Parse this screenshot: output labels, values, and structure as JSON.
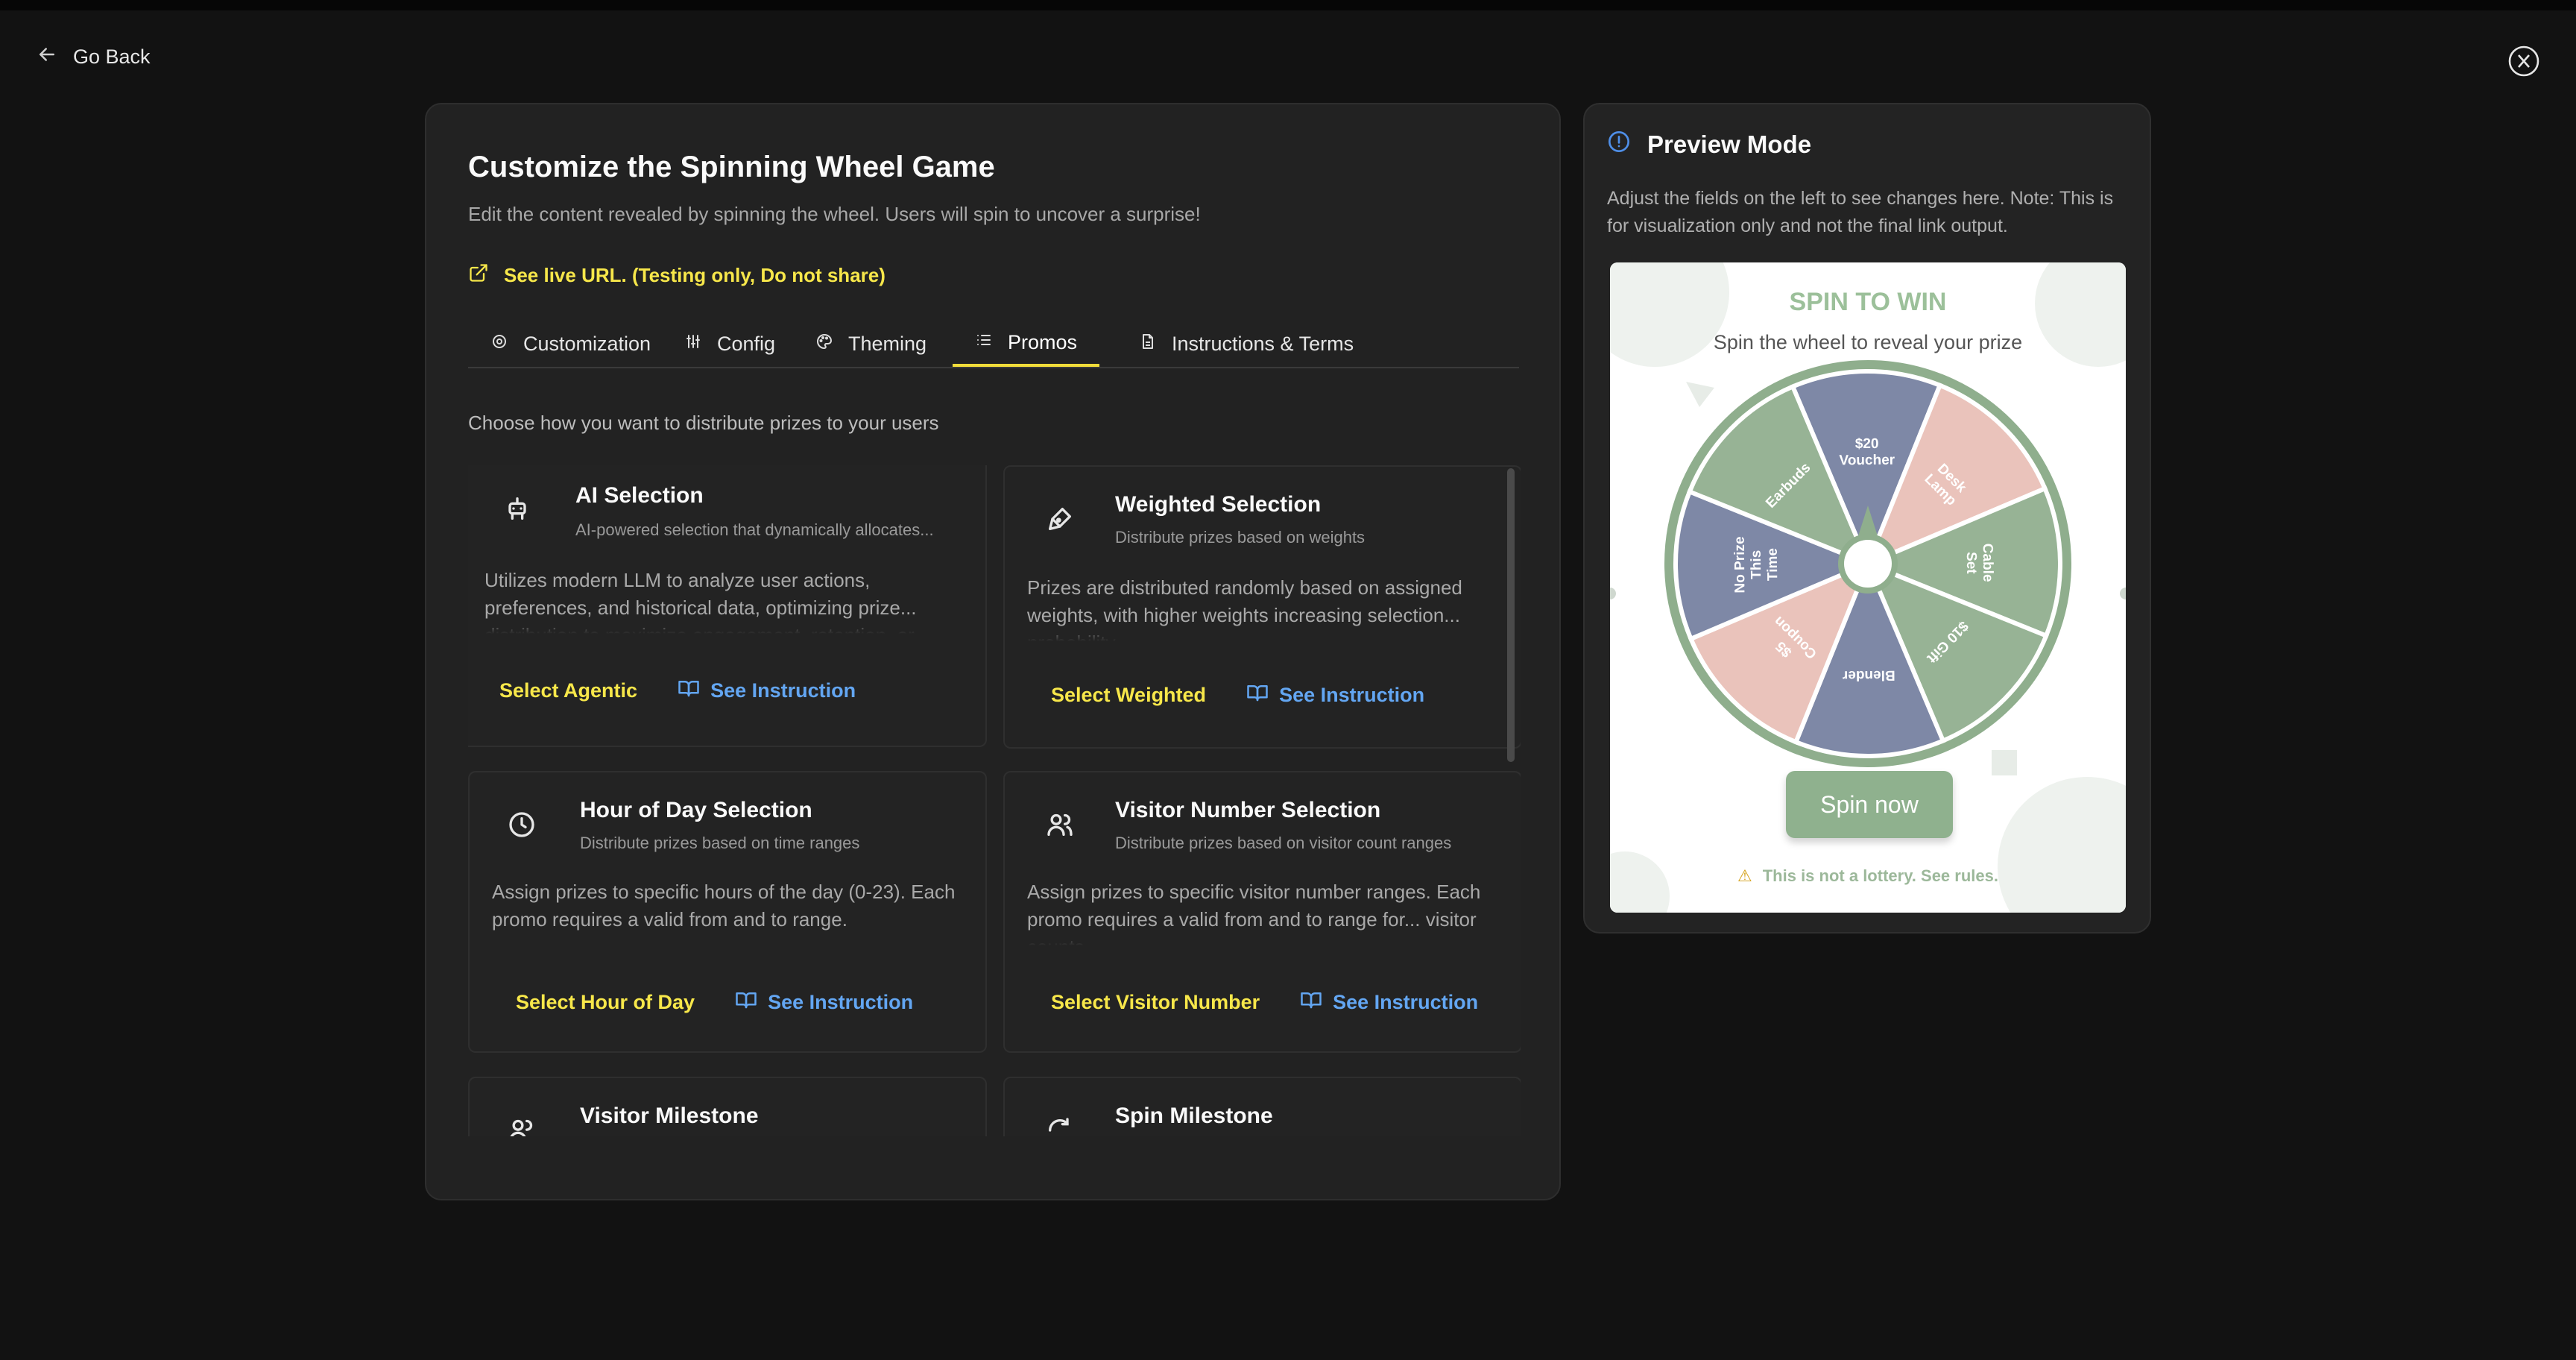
{
  "header": {
    "go_back_label": "Go Back"
  },
  "main": {
    "title": "Customize the Spinning Wheel Game",
    "subtitle": "Edit the content revealed by spinning the wheel. Users will spin to uncover a surprise!",
    "live_url_label": "See live URL. (Testing only, Do not share)",
    "tabs": [
      {
        "label": "Customization",
        "icon": "target-icon"
      },
      {
        "label": "Config",
        "icon": "sliders-icon"
      },
      {
        "label": "Theming",
        "icon": "palette-icon"
      },
      {
        "label": "Promos",
        "icon": "list-icon",
        "active": true
      },
      {
        "label": "Instructions & Terms",
        "icon": "document-icon"
      }
    ],
    "choose_text": "Choose how you want to distribute prizes to your users",
    "promo_cards": [
      {
        "icon": "robot-icon",
        "title": "AI Selection",
        "subtitle": "AI-powered selection that dynamically allocates...",
        "description": "Utilizes modern LLM to analyze user actions, preferences, and historical data, optimizing prize... distribution to maximize engagement, retention, or",
        "select_label": "Select Agentic",
        "instruction_label": "See Instruction"
      },
      {
        "icon": "scale-icon",
        "title": "Weighted Selection",
        "subtitle": "Distribute prizes based on weights",
        "description": "Prizes are distributed randomly based on assigned weights, with higher weights increasing selection... probability",
        "select_label": "Select Weighted",
        "instruction_label": "See Instruction"
      },
      {
        "icon": "clock-icon",
        "title": "Hour of Day Selection",
        "subtitle": "Distribute prizes based on time ranges",
        "description": "Assign prizes to specific hours of the day (0-23). Each promo requires a valid from and to range.",
        "select_label": "Select Hour of Day",
        "instruction_label": "See Instruction"
      },
      {
        "icon": "users-icon",
        "title": "Visitor Number Selection",
        "subtitle": "Distribute prizes based on visitor count ranges",
        "description": "Assign prizes to specific visitor number ranges. Each promo requires a valid from and to range for... visitor counts",
        "select_label": "Select Visitor Number",
        "instruction_label": "See Instruction"
      },
      {
        "icon": "users-icon",
        "title": "Visitor Milestone"
      },
      {
        "icon": "refresh-icon",
        "title": "Spin Milestone"
      }
    ]
  },
  "preview": {
    "title": "Preview Mode",
    "note": "Adjust the fields on the left to see changes here. Note: This is for visualization only and not the final link output.",
    "spin_title": "SPIN TO WIN",
    "spin_subtitle": "Spin the wheel to reveal your prize",
    "wheel_segments": [
      {
        "label": "$20 Voucher",
        "color": "#7e88a6"
      },
      {
        "label": "Desk Lamp",
        "color": "#eac3bb"
      },
      {
        "label": "Cable Set",
        "color": "#97b395"
      },
      {
        "label": "$10 Gift",
        "color": "#97b395"
      },
      {
        "label": "Blender",
        "color": "#7e88a6"
      },
      {
        "label": "$5 Coupon",
        "color": "#eac3bb"
      },
      {
        "label": "No Prize This Time",
        "color": "#7e88a6"
      },
      {
        "label": "Earbuds",
        "color": "#97b395"
      }
    ],
    "spin_button": "Spin now",
    "lottery_note": "This is not a lottery. See rules.",
    "colors": {
      "accent": "#8fb18e",
      "title": "#9cc09a"
    }
  },
  "colors": {
    "select": "#f7e74a",
    "instruction": "#63a6f2",
    "tab_active": "#f0dc3a"
  }
}
